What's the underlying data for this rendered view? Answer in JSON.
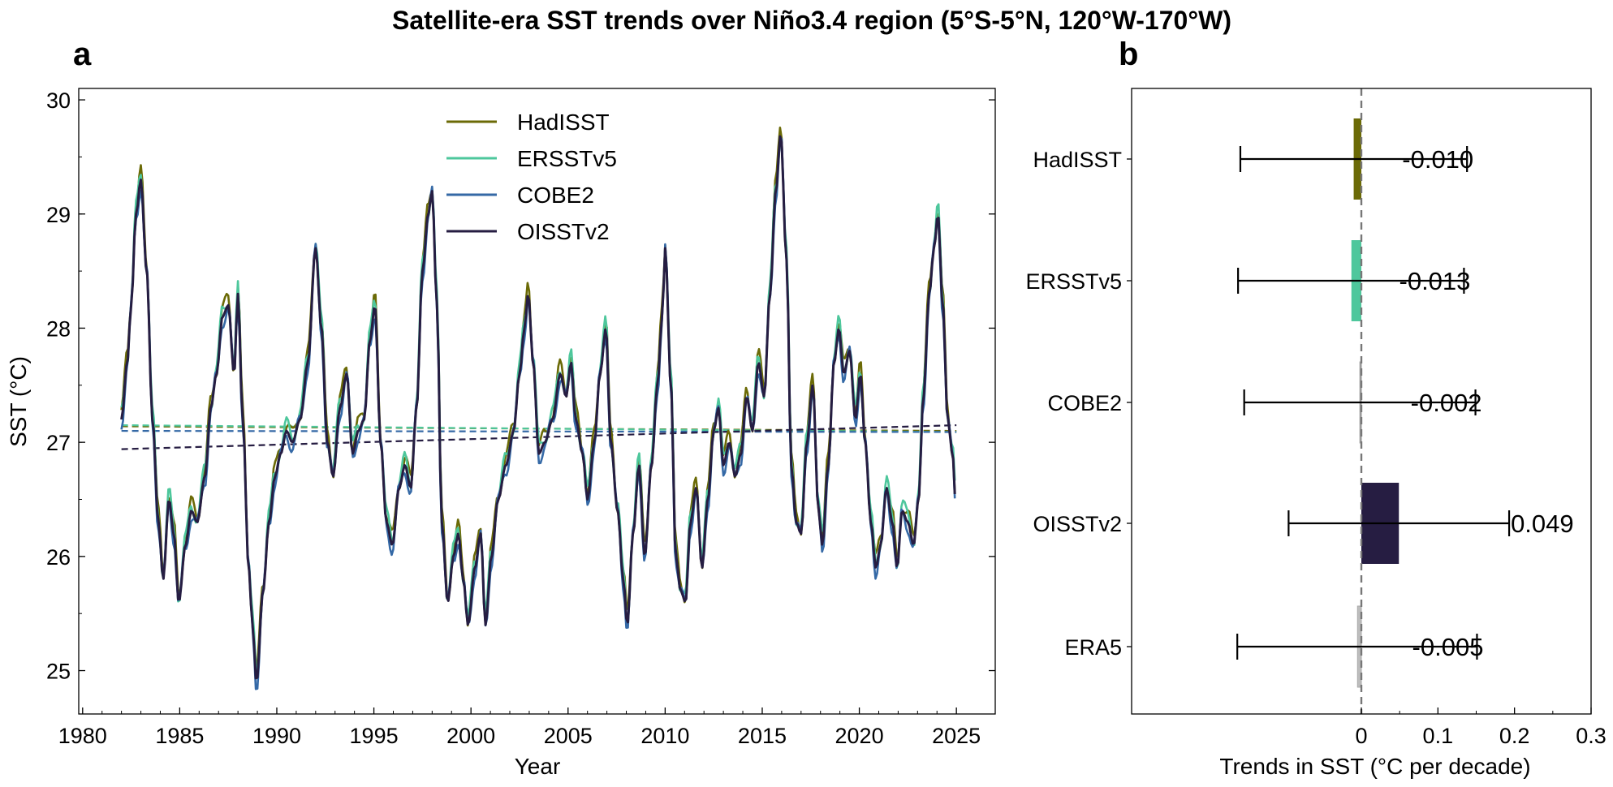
{
  "figure": {
    "suptitle": "Satellite-era SST trends over Niño3.4 region (5°S-5°N, 120°W-170°W)"
  },
  "chart_data": [
    {
      "panel": "a",
      "type": "line",
      "title": "",
      "xlabel": "Year",
      "ylabel": "SST (°C)",
      "xlim": [
        1979.8,
        2027.0
      ],
      "ylim": [
        24.62,
        30.1
      ],
      "xticks": [
        1980,
        1985,
        1990,
        1995,
        2000,
        2005,
        2010,
        2015,
        2020,
        2025
      ],
      "yticks": [
        25,
        26,
        27,
        28,
        29,
        30
      ],
      "legend_position": "top-center",
      "anchors": [
        [
          1982.0,
          27.2
        ],
        [
          1982.3,
          27.7
        ],
        [
          1982.5,
          28.2
        ],
        [
          1982.75,
          29.0
        ],
        [
          1983.0,
          29.3
        ],
        [
          1983.3,
          28.5
        ],
        [
          1983.6,
          27.2
        ],
        [
          1983.9,
          26.3
        ],
        [
          1984.15,
          25.8
        ],
        [
          1984.45,
          26.5
        ],
        [
          1984.7,
          26.2
        ],
        [
          1984.95,
          25.6
        ],
        [
          1985.3,
          26.1
        ],
        [
          1985.6,
          26.4
        ],
        [
          1985.9,
          26.3
        ],
        [
          1986.3,
          26.7
        ],
        [
          1986.6,
          27.3
        ],
        [
          1986.9,
          27.6
        ],
        [
          1987.2,
          28.1
        ],
        [
          1987.5,
          28.2
        ],
        [
          1987.8,
          27.6
        ],
        [
          1988.0,
          28.3
        ],
        [
          1988.25,
          27.2
        ],
        [
          1988.55,
          25.9
        ],
        [
          1988.75,
          25.4
        ],
        [
          1988.95,
          24.9
        ],
        [
          1989.3,
          25.7
        ],
        [
          1989.6,
          26.3
        ],
        [
          1989.9,
          26.7
        ],
        [
          1990.2,
          26.9
        ],
        [
          1990.5,
          27.1
        ],
        [
          1990.8,
          27.0
        ],
        [
          1991.2,
          27.2
        ],
        [
          1991.6,
          27.7
        ],
        [
          1992.0,
          28.7
        ],
        [
          1992.3,
          28.0
        ],
        [
          1992.6,
          27.0
        ],
        [
          1992.9,
          26.7
        ],
        [
          1993.25,
          27.3
        ],
        [
          1993.6,
          27.6
        ],
        [
          1993.9,
          26.9
        ],
        [
          1994.2,
          27.1
        ],
        [
          1994.5,
          27.2
        ],
        [
          1994.8,
          27.9
        ],
        [
          1995.05,
          28.2
        ],
        [
          1995.35,
          27.0
        ],
        [
          1995.65,
          26.3
        ],
        [
          1995.95,
          26.1
        ],
        [
          1996.3,
          26.6
        ],
        [
          1996.6,
          26.8
        ],
        [
          1996.9,
          26.6
        ],
        [
          1997.2,
          27.3
        ],
        [
          1997.5,
          28.5
        ],
        [
          1997.8,
          29.0
        ],
        [
          1998.0,
          29.2
        ],
        [
          1998.25,
          28.2
        ],
        [
          1998.5,
          26.3
        ],
        [
          1998.8,
          25.6
        ],
        [
          1999.1,
          26.0
        ],
        [
          1999.35,
          26.2
        ],
        [
          1999.6,
          25.8
        ],
        [
          1999.85,
          25.4
        ],
        [
          2000.2,
          25.9
        ],
        [
          2000.5,
          26.2
        ],
        [
          2000.75,
          25.4
        ],
        [
          2001.05,
          26.0
        ],
        [
          2001.4,
          26.5
        ],
        [
          2001.8,
          26.8
        ],
        [
          2002.2,
          27.1
        ],
        [
          2002.5,
          27.6
        ],
        [
          2002.75,
          28.0
        ],
        [
          2002.95,
          28.3
        ],
        [
          2003.2,
          27.7
        ],
        [
          2003.5,
          26.9
        ],
        [
          2003.8,
          27.0
        ],
        [
          2004.2,
          27.2
        ],
        [
          2004.6,
          27.6
        ],
        [
          2004.9,
          27.4
        ],
        [
          2005.15,
          27.7
        ],
        [
          2005.4,
          27.2
        ],
        [
          2005.75,
          26.9
        ],
        [
          2006.0,
          26.5
        ],
        [
          2006.35,
          27.0
        ],
        [
          2006.65,
          27.6
        ],
        [
          2006.95,
          28.0
        ],
        [
          2007.2,
          27.0
        ],
        [
          2007.55,
          26.4
        ],
        [
          2007.85,
          25.8
        ],
        [
          2008.05,
          25.4
        ],
        [
          2008.35,
          26.2
        ],
        [
          2008.65,
          26.8
        ],
        [
          2008.95,
          26.0
        ],
        [
          2009.3,
          26.8
        ],
        [
          2009.6,
          27.5
        ],
        [
          2009.85,
          28.1
        ],
        [
          2010.0,
          28.7
        ],
        [
          2010.3,
          27.5
        ],
        [
          2010.55,
          26.0
        ],
        [
          2010.8,
          25.7
        ],
        [
          2011.05,
          25.6
        ],
        [
          2011.3,
          26.3
        ],
        [
          2011.6,
          26.6
        ],
        [
          2011.9,
          25.9
        ],
        [
          2012.2,
          26.5
        ],
        [
          2012.5,
          27.1
        ],
        [
          2012.75,
          27.3
        ],
        [
          2013.0,
          26.8
        ],
        [
          2013.3,
          27.0
        ],
        [
          2013.6,
          26.7
        ],
        [
          2013.9,
          26.9
        ],
        [
          2014.2,
          27.4
        ],
        [
          2014.5,
          27.1
        ],
        [
          2014.8,
          27.7
        ],
        [
          2015.1,
          27.4
        ],
        [
          2015.4,
          28.3
        ],
        [
          2015.7,
          29.2
        ],
        [
          2015.95,
          29.7
        ],
        [
          2016.25,
          28.6
        ],
        [
          2016.5,
          26.8
        ],
        [
          2016.75,
          26.3
        ],
        [
          2017.0,
          26.2
        ],
        [
          2017.3,
          27.0
        ],
        [
          2017.6,
          27.5
        ],
        [
          2017.9,
          26.4
        ],
        [
          2018.1,
          26.1
        ],
        [
          2018.4,
          26.8
        ],
        [
          2018.7,
          27.7
        ],
        [
          2018.95,
          28.0
        ],
        [
          2019.2,
          27.6
        ],
        [
          2019.5,
          27.8
        ],
        [
          2019.8,
          27.2
        ],
        [
          2020.05,
          27.6
        ],
        [
          2020.3,
          27.0
        ],
        [
          2020.6,
          26.3
        ],
        [
          2020.85,
          25.9
        ],
        [
          2021.1,
          26.1
        ],
        [
          2021.4,
          26.6
        ],
        [
          2021.7,
          26.3
        ],
        [
          2021.95,
          25.9
        ],
        [
          2022.2,
          26.4
        ],
        [
          2022.5,
          26.3
        ],
        [
          2022.8,
          26.1
        ],
        [
          2023.05,
          26.5
        ],
        [
          2023.3,
          27.4
        ],
        [
          2023.6,
          28.3
        ],
        [
          2023.85,
          28.7
        ],
        [
          2024.05,
          29.0
        ],
        [
          2024.3,
          28.2
        ],
        [
          2024.55,
          27.2
        ],
        [
          2024.8,
          26.9
        ],
        [
          2024.95,
          26.5
        ]
      ],
      "series": [
        {
          "name": "HadISST",
          "color": "#6b6a06",
          "offset": 0.06,
          "trend": [
            27.14,
            27.1
          ],
          "variant": 1
        },
        {
          "name": "ERSSTv5",
          "color": "#4ec79c",
          "offset": 0.05,
          "trend": [
            27.15,
            27.09
          ],
          "variant": 2
        },
        {
          "name": "COBE2",
          "color": "#3569a6",
          "offset": -0.03,
          "trend": [
            27.1,
            27.09
          ],
          "variant": 3
        },
        {
          "name": "OISSTv2",
          "color": "#261d42",
          "offset": 0.0,
          "trend": [
            26.94,
            27.15
          ],
          "variant": 0
        }
      ]
    },
    {
      "panel": "b",
      "type": "bar",
      "orientation": "horizontal",
      "xlabel": "Trends in SST (°C per decade)",
      "ylabel": "",
      "xlim": [
        -0.3,
        0.3
      ],
      "xticks": [
        0,
        0.1,
        0.2,
        0.3
      ],
      "xtick_labels": [
        "0",
        "0.1",
        "0.2",
        "0.3"
      ],
      "reference_line": 0,
      "categories": [
        "HadISST",
        "ERSSTv5",
        "COBE2",
        "OISSTv2",
        "ERA5"
      ],
      "values": [
        -0.01,
        -0.013,
        -0.002,
        0.049,
        -0.005
      ],
      "value_labels": [
        "-0.010",
        "-0.013",
        "-0.002",
        "0.049",
        "-0.005"
      ],
      "error_low": [
        -0.158,
        -0.161,
        -0.153,
        -0.095,
        -0.162
      ],
      "error_high": [
        0.138,
        0.134,
        0.149,
        0.193,
        0.151
      ],
      "colors": [
        "#6b6a06",
        "#4ec79c",
        "#8b8b8b",
        "#261d42",
        "#bdbdbd"
      ]
    }
  ]
}
